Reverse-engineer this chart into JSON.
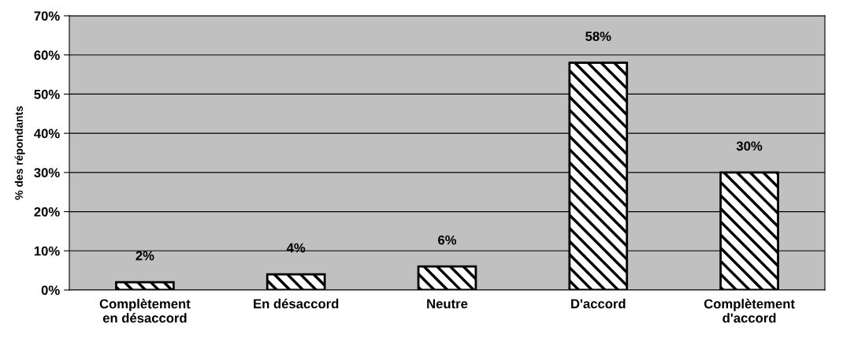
{
  "chart_data": {
    "type": "bar",
    "ylabel": "% des répondants",
    "categories": [
      "Complètement\nen désaccord",
      "En désaccord",
      "Neutre",
      "D'accord",
      "Complètement\nd'accord"
    ],
    "values": [
      2,
      4,
      6,
      58,
      30
    ],
    "value_labels": [
      "2%",
      "4%",
      "6%",
      "58%",
      "30%"
    ],
    "color": "#000000",
    "ylim": [
      0,
      70
    ],
    "yticks": [
      {
        "value": 0,
        "label": "0%"
      },
      {
        "value": 10,
        "label": "10%"
      },
      {
        "value": 20,
        "label": "20%"
      },
      {
        "value": 30,
        "label": "30%"
      },
      {
        "value": 40,
        "label": "40%"
      },
      {
        "value": 50,
        "label": "50%"
      },
      {
        "value": 60,
        "label": "60%"
      },
      {
        "value": 70,
        "label": "70%"
      }
    ],
    "grid": "y"
  }
}
